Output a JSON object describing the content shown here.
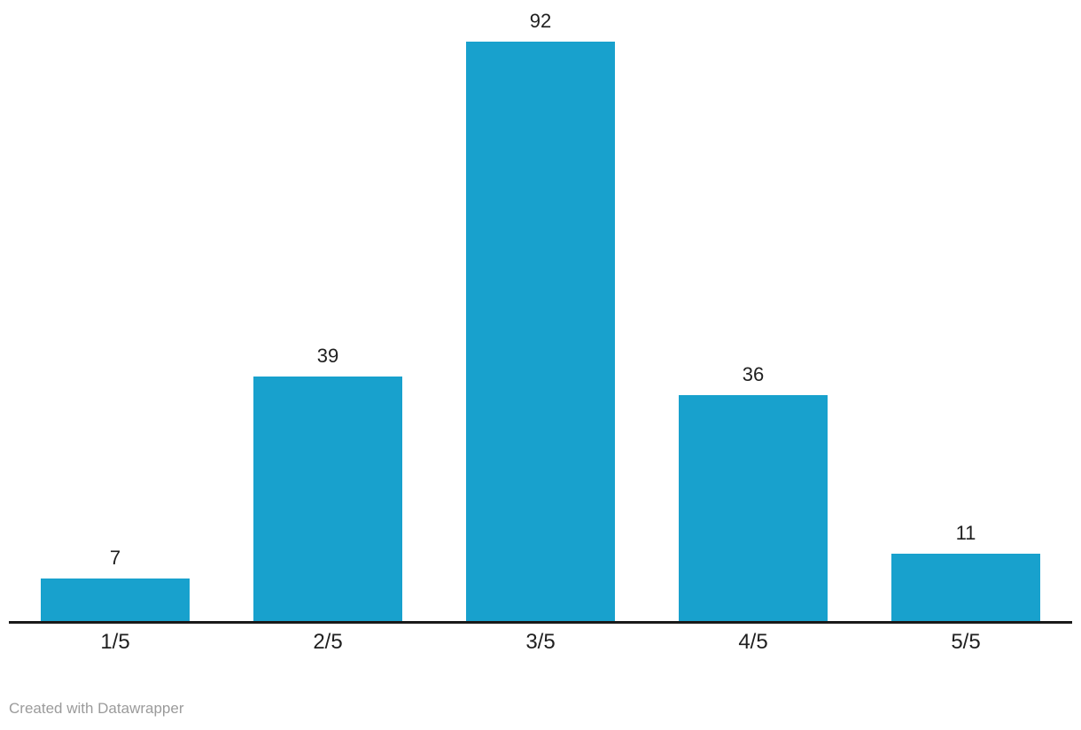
{
  "chart_data": {
    "type": "bar",
    "categories": [
      "1/5",
      "2/5",
      "3/5",
      "4/5",
      "5/5"
    ],
    "values": [
      7,
      39,
      92,
      36,
      11
    ],
    "title": "",
    "xlabel": "",
    "ylabel": "",
    "ylim": [
      0,
      92
    ],
    "grid": false,
    "legend": false,
    "value_labels_shown": true,
    "bar_color": "#18a1cd"
  },
  "colors": {
    "bar": "#18a1cd",
    "axis": "#191919",
    "label": "#1f1f1f",
    "attribution": "#9b9b9b",
    "background": "#ffffff"
  },
  "footer": {
    "attribution": "Created with Datawrapper"
  }
}
